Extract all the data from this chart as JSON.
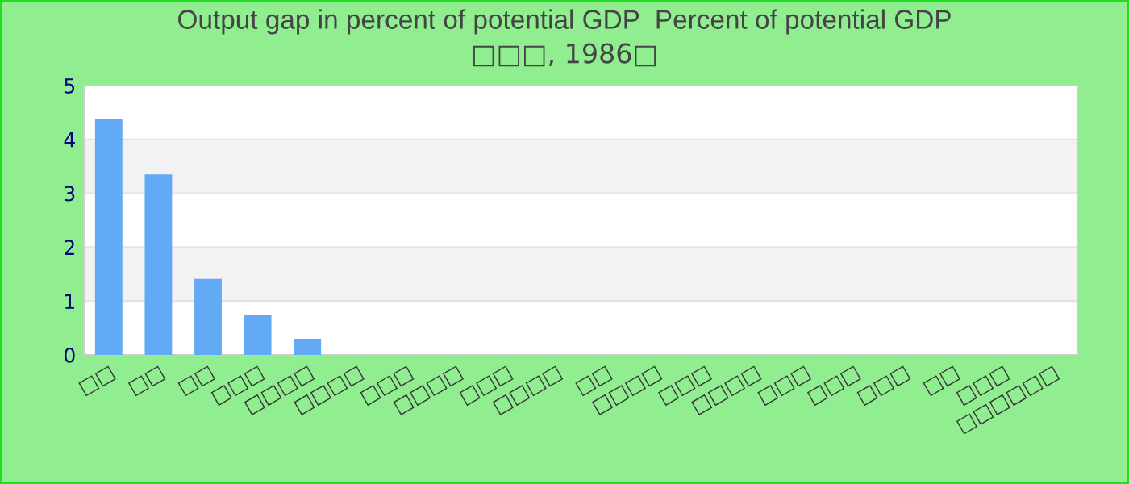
{
  "chart_data": {
    "type": "bar",
    "title": "Output gap in percent of potential GDP  Percent of potential GDP",
    "subtitle": "□□□, 1986□",
    "categories": [
      "□□",
      "□□",
      "□□",
      "□□□",
      "□□□□",
      "□□□□",
      "□□□",
      "□□□□",
      "□□□",
      "□□□□",
      "□□",
      "□□□□",
      "□□□",
      "□□□□",
      "□□□",
      "□□□",
      "□□□",
      "□□",
      "□□□",
      "□□□□□□"
    ],
    "values": [
      4.37,
      3.35,
      1.41,
      0.75,
      0.3,
      0,
      0,
      0,
      0,
      0,
      0,
      0,
      0,
      0,
      0,
      0,
      0,
      0,
      0,
      0
    ],
    "color": "#62aaf5",
    "ylim": [
      0,
      5
    ],
    "yticks": [
      0,
      1,
      2,
      3,
      4,
      5
    ],
    "grid": "y",
    "legend": false
  }
}
